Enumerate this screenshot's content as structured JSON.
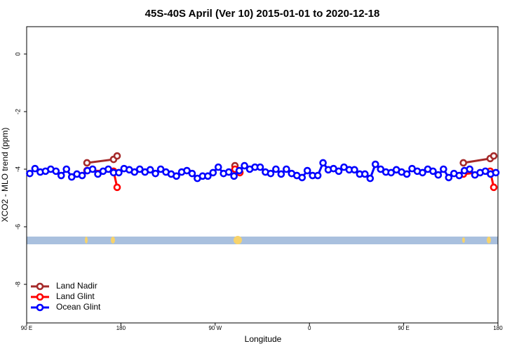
{
  "chart_data": {
    "type": "line",
    "title": "45S-40S April (Ver 10)   2015-01-01 to 2020-12-18",
    "x_label": "Longitude",
    "y_label": "XCO2 - MLO trend (ppm)",
    "xlim": [
      90,
      540
    ],
    "xticks": [
      {
        "value": 90,
        "label": "90 E"
      },
      180,
      {
        "value": 270,
        "label": "90 W"
      },
      {
        "value": 360,
        "label": "0"
      },
      {
        "value": 450,
        "label": "90 E"
      },
      {
        "value": 540,
        "label": "180"
      }
    ],
    "ylim": [
      -9.34,
      0.95
    ],
    "yticks": [
      0,
      -2,
      -4,
      -6,
      -8
    ],
    "legend": "bottom-left",
    "series": [
      {
        "name": "Land Nadir",
        "color": "#a52a2a",
        "x": [
          147.6,
          173,
          176.4,
          null,
          288.9,
          null,
          507,
          532.6,
          536
        ],
        "values": [
          -3.78,
          -3.66,
          -3.54,
          null,
          -3.88,
          null,
          -3.78,
          -3.63,
          -3.54
        ]
      },
      {
        "name": "Land Glint",
        "color": "#ff0000",
        "x": [
          147.6,
          173,
          176.4,
          null,
          288.9,
          293.6,
          null,
          507,
          532.6,
          536
        ],
        "values": [
          -4.05,
          -4.07,
          -4.63,
          null,
          -4.0,
          -4.12,
          null,
          -4.17,
          -4.07,
          -4.63
        ]
      },
      {
        "name": "Ocean Glint",
        "color": "#0000ff",
        "x": [
          93,
          98,
          103,
          108,
          113,
          118,
          123,
          128,
          133,
          138,
          143,
          148,
          153,
          158,
          163,
          168,
          173,
          178,
          183,
          188,
          193,
          198,
          203,
          208,
          213,
          218,
          223,
          228,
          233,
          238,
          243,
          248,
          253,
          258,
          263,
          268,
          273,
          278,
          283,
          288,
          293,
          298,
          303,
          308,
          313,
          318,
          323,
          328,
          333,
          338,
          343,
          348,
          353,
          358,
          363,
          368,
          373,
          378,
          383,
          388,
          393,
          398,
          403,
          408,
          413,
          418,
          423,
          428,
          433,
          438,
          443,
          448,
          453,
          458,
          463,
          468,
          473,
          478,
          483,
          488,
          493,
          498,
          503,
          508,
          513,
          518,
          523,
          528,
          533,
          538
        ],
        "values": [
          -4.15,
          -3.98,
          -4.1,
          -4.07,
          -4.0,
          -4.07,
          -4.22,
          -4.0,
          -4.27,
          -4.17,
          -4.22,
          -4.05,
          -4.0,
          -4.17,
          -4.07,
          -4.0,
          -4.12,
          -4.12,
          -3.98,
          -4.02,
          -4.1,
          -4.0,
          -4.1,
          -4.02,
          -4.15,
          -4.0,
          -4.1,
          -4.17,
          -4.24,
          -4.1,
          -4.05,
          -4.15,
          -4.32,
          -4.24,
          -4.24,
          -4.12,
          -3.93,
          -4.15,
          -4.1,
          -4.24,
          -4.05,
          -3.88,
          -4.0,
          -3.93,
          -3.93,
          -4.1,
          -4.15,
          -4.0,
          -4.17,
          -4.0,
          -4.15,
          -4.22,
          -4.29,
          -4.05,
          -4.22,
          -4.22,
          -3.78,
          -4.02,
          -3.98,
          -4.07,
          -3.93,
          -4.02,
          -4.02,
          -4.17,
          -4.17,
          -4.32,
          -3.83,
          -4.0,
          -4.1,
          -4.12,
          -4.02,
          -4.1,
          -4.17,
          -3.98,
          -4.07,
          -4.12,
          -4.0,
          -4.07,
          -4.2,
          -4.0,
          -4.29,
          -4.15,
          -4.22,
          -4.05,
          -4.0,
          -4.2,
          -4.12,
          -4.07,
          -4.17,
          -4.12
        ]
      }
    ]
  }
}
